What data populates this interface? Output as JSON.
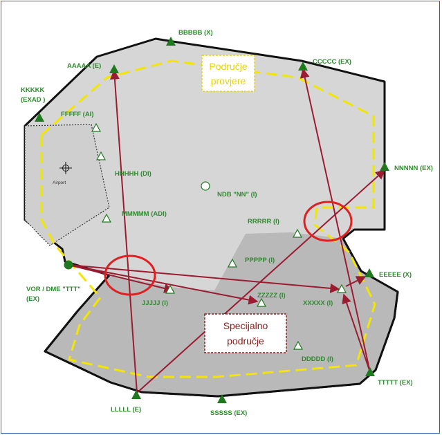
{
  "colors": {
    "frame": "#2f5fb3",
    "area_fill": "#d6d6d6",
    "special_fill": "#b9b9b9",
    "outline": "#111111",
    "boundary_dash": "#f2e600",
    "route": "#9b1b30",
    "circle": "#e02020",
    "label": "#2e8b2e",
    "filled_point": "#1f7a1f"
  },
  "zones": {
    "podrucje_line1": "Područje",
    "podrucje_line2": "provjere",
    "specijalno_line1": "Specijalno",
    "specijalno_line2": "područje"
  },
  "airport": {
    "label": "Airport"
  },
  "points": [
    {
      "id": "bbbbb",
      "label": "BBBBB (X)"
    },
    {
      "id": "aaaaa",
      "label": "AAAAA (E)"
    },
    {
      "id": "ccccc",
      "label": "CCCCC (EX)"
    },
    {
      "id": "kkkkk",
      "label1": "KKKKK",
      "label2": "(EXAD )"
    },
    {
      "id": "fffff",
      "label": "FFFFF (AI)"
    },
    {
      "id": "hhhhh",
      "label": "HHHHH (DI)"
    },
    {
      "id": "mmmmm",
      "label": "MMMMM (ADI)"
    },
    {
      "id": "ndb",
      "label": "NDB \"NN\" (I)"
    },
    {
      "id": "nnnnn",
      "label": "NNNNN (EX)"
    },
    {
      "id": "rrrrr",
      "label": "RRRRR (I)"
    },
    {
      "id": "ppppp",
      "label": "PPPPP (I)"
    },
    {
      "id": "vor",
      "label1": "VOR / DME \"TTT\"",
      "label2": "(EX)"
    },
    {
      "id": "eeeee",
      "label": "EEEEE (X)"
    },
    {
      "id": "jjjjj",
      "label": "JJJJJ (I)"
    },
    {
      "id": "zzzzz",
      "label": "ZZZZZ (I)"
    },
    {
      "id": "xxxxx",
      "label": "XXXXX (I)"
    },
    {
      "id": "ddddd",
      "label": "DDDDD (I)"
    },
    {
      "id": "ttttt",
      "label": "TTTTT (EX)"
    },
    {
      "id": "lllll",
      "label": "LLLLL (E)"
    },
    {
      "id": "sssss",
      "label": "SSSSS (EX)"
    }
  ]
}
